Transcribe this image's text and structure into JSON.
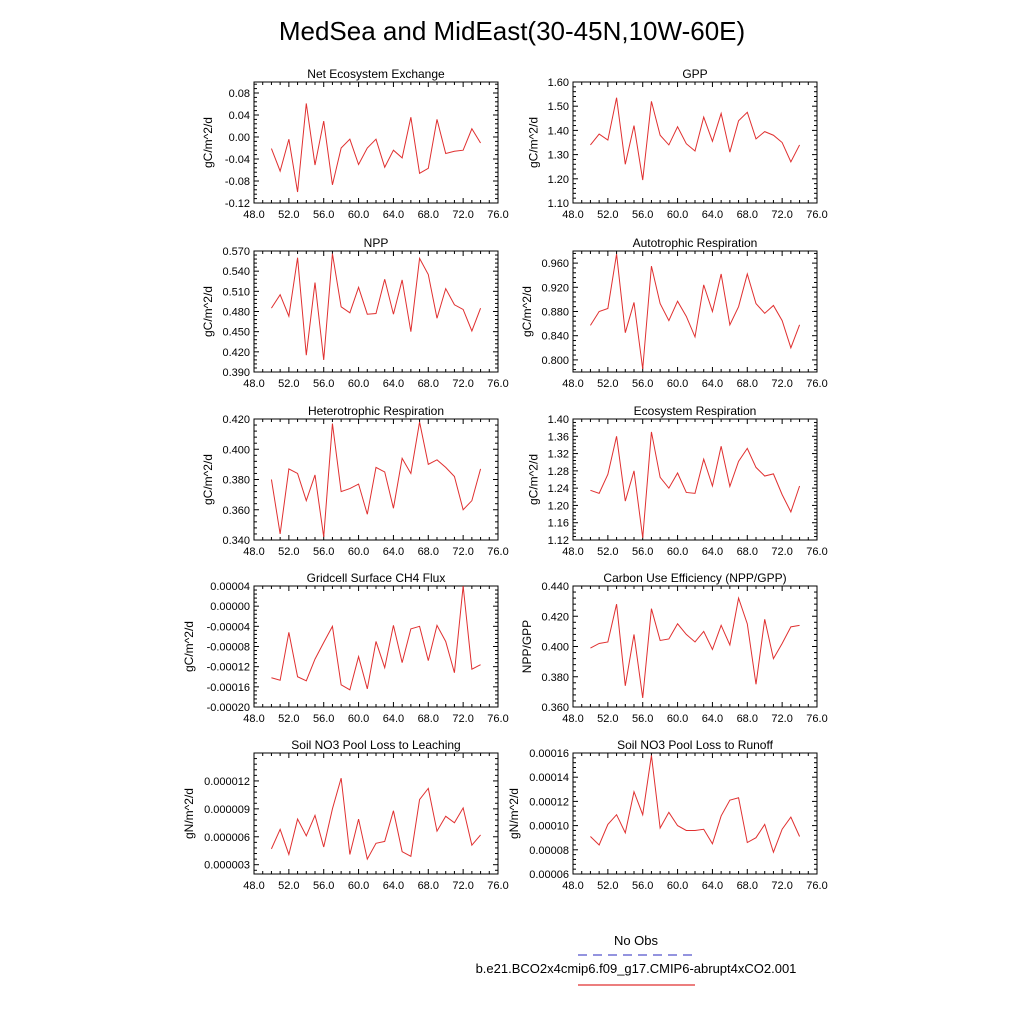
{
  "figure": {
    "title": "MedSea and MidEast(30-45N,10W-60E)"
  },
  "legend": {
    "entries": [
      {
        "label": "No Obs",
        "color": "#5555cc",
        "style": "dashed"
      },
      {
        "label": "b.e21.BCO2x4cmip6.f09_g17.CMIP6-abrupt4xCO2.001",
        "color": "#e03030",
        "style": "solid"
      }
    ]
  },
  "chart_data": [
    {
      "type": "line",
      "title": "Net Ecosystem Exchange",
      "ylabel": "gC/m^2/d",
      "xlabel": "",
      "xlim": [
        48,
        76
      ],
      "xticks": [
        48,
        52,
        56,
        60,
        64,
        68,
        72,
        76
      ],
      "xtick_labels": [
        "48.0",
        "52.0",
        "56.0",
        "60.0",
        "64.0",
        "68.0",
        "72.0",
        "76.0"
      ],
      "ylim": [
        -0.12,
        0.1
      ],
      "yticks": [
        -0.12,
        -0.08,
        -0.04,
        0.0,
        0.04,
        0.08
      ],
      "ytick_labels": [
        "-0.12",
        "-0.08",
        "-0.04",
        "0.00",
        "0.04",
        "0.08"
      ],
      "series": [
        {
          "name": "b.e21.BCO2x4cmip6.f09_g17.CMIP6-abrupt4xCO2.001",
          "color": "#e03030",
          "x": [
            50,
            51,
            52,
            53,
            54,
            55,
            56,
            57,
            58,
            59,
            60,
            61,
            62,
            63,
            64,
            65,
            66,
            67,
            68,
            69,
            70,
            71,
            72,
            73,
            74
          ],
          "values": [
            -0.021,
            -0.062,
            -0.004,
            -0.1,
            0.061,
            -0.051,
            0.029,
            -0.087,
            -0.02,
            -0.004,
            -0.05,
            -0.02,
            -0.004,
            -0.055,
            -0.024,
            -0.038,
            0.036,
            -0.066,
            -0.057,
            0.032,
            -0.03,
            -0.026,
            -0.024,
            0.015,
            -0.011
          ]
        }
      ]
    },
    {
      "type": "line",
      "title": "GPP",
      "ylabel": "gC/m^2/d",
      "xlabel": "",
      "xlim": [
        48,
        76
      ],
      "xticks": [
        48,
        52,
        56,
        60,
        64,
        68,
        72,
        76
      ],
      "xtick_labels": [
        "48.0",
        "52.0",
        "56.0",
        "60.0",
        "64.0",
        "68.0",
        "72.0",
        "76.0"
      ],
      "ylim": [
        1.1,
        1.6
      ],
      "yticks": [
        1.1,
        1.2,
        1.3,
        1.4,
        1.5,
        1.6
      ],
      "ytick_labels": [
        "1.10",
        "1.20",
        "1.30",
        "1.40",
        "1.50",
        "1.60"
      ],
      "series": [
        {
          "name": "b.e21.BCO2x4cmip6.f09_g17.CMIP6-abrupt4xCO2.001",
          "color": "#e03030",
          "x": [
            50,
            51,
            52,
            53,
            54,
            55,
            56,
            57,
            58,
            59,
            60,
            61,
            62,
            63,
            64,
            65,
            66,
            67,
            68,
            69,
            70,
            71,
            72,
            73,
            74
          ],
          "values": [
            1.34,
            1.385,
            1.36,
            1.535,
            1.26,
            1.42,
            1.195,
            1.52,
            1.38,
            1.34,
            1.415,
            1.345,
            1.315,
            1.455,
            1.355,
            1.47,
            1.31,
            1.44,
            1.475,
            1.365,
            1.395,
            1.38,
            1.35,
            1.27,
            1.34
          ]
        }
      ]
    },
    {
      "type": "line",
      "title": "NPP",
      "ylabel": "gC/m^2/d",
      "xlabel": "",
      "xlim": [
        48,
        76
      ],
      "xticks": [
        48,
        52,
        56,
        60,
        64,
        68,
        72,
        76
      ],
      "xtick_labels": [
        "48.0",
        "52.0",
        "56.0",
        "60.0",
        "64.0",
        "68.0",
        "72.0",
        "76.0"
      ],
      "ylim": [
        0.39,
        0.57
      ],
      "yticks": [
        0.39,
        0.42,
        0.45,
        0.48,
        0.51,
        0.54,
        0.57
      ],
      "ytick_labels": [
        "0.390",
        "0.420",
        "0.450",
        "0.480",
        "0.510",
        "0.540",
        "0.570"
      ],
      "series": [
        {
          "name": "b.e21.BCO2x4cmip6.f09_g17.CMIP6-abrupt4xCO2.001",
          "color": "#e03030",
          "x": [
            50,
            51,
            52,
            53,
            54,
            55,
            56,
            57,
            58,
            59,
            60,
            61,
            62,
            63,
            64,
            65,
            66,
            67,
            68,
            69,
            70,
            71,
            72,
            73,
            74
          ],
          "values": [
            0.485,
            0.505,
            0.473,
            0.56,
            0.415,
            0.523,
            0.408,
            0.566,
            0.487,
            0.478,
            0.516,
            0.476,
            0.477,
            0.528,
            0.476,
            0.527,
            0.45,
            0.559,
            0.535,
            0.47,
            0.514,
            0.49,
            0.483,
            0.451,
            0.485
          ]
        }
      ]
    },
    {
      "type": "line",
      "title": "Autotrophic Respiration",
      "ylabel": "gC/m^2/d",
      "xlabel": "",
      "xlim": [
        48,
        76
      ],
      "xticks": [
        48,
        52,
        56,
        60,
        64,
        68,
        72,
        76
      ],
      "xtick_labels": [
        "48.0",
        "52.0",
        "56.0",
        "60.0",
        "64.0",
        "68.0",
        "72.0",
        "76.0"
      ],
      "ylim": [
        0.78,
        0.98
      ],
      "yticks": [
        0.8,
        0.84,
        0.88,
        0.92,
        0.96
      ],
      "ytick_labels": [
        "0.800",
        "0.840",
        "0.880",
        "0.920",
        "0.960"
      ],
      "series": [
        {
          "name": "b.e21.BCO2x4cmip6.f09_g17.CMIP6-abrupt4xCO2.001",
          "color": "#e03030",
          "x": [
            50,
            51,
            52,
            53,
            54,
            55,
            56,
            57,
            58,
            59,
            60,
            61,
            62,
            63,
            64,
            65,
            66,
            67,
            68,
            69,
            70,
            71,
            72,
            73,
            74
          ],
          "values": [
            0.857,
            0.88,
            0.885,
            0.975,
            0.845,
            0.895,
            0.785,
            0.955,
            0.893,
            0.865,
            0.897,
            0.872,
            0.838,
            0.924,
            0.88,
            0.942,
            0.858,
            0.888,
            0.942,
            0.893,
            0.877,
            0.89,
            0.865,
            0.82,
            0.858
          ]
        }
      ]
    },
    {
      "type": "line",
      "title": "Heterotrophic Respiration",
      "ylabel": "gC/m^2/d",
      "xlabel": "",
      "xlim": [
        48,
        76
      ],
      "xticks": [
        48,
        52,
        56,
        60,
        64,
        68,
        72,
        76
      ],
      "xtick_labels": [
        "48.0",
        "52.0",
        "56.0",
        "60.0",
        "64.0",
        "68.0",
        "72.0",
        "76.0"
      ],
      "ylim": [
        0.34,
        0.42
      ],
      "yticks": [
        0.34,
        0.36,
        0.38,
        0.4,
        0.42
      ],
      "ytick_labels": [
        "0.340",
        "0.360",
        "0.380",
        "0.400",
        "0.420"
      ],
      "series": [
        {
          "name": "b.e21.BCO2x4cmip6.f09_g17.CMIP6-abrupt4xCO2.001",
          "color": "#e03030",
          "x": [
            50,
            51,
            52,
            53,
            54,
            55,
            56,
            57,
            58,
            59,
            60,
            61,
            62,
            63,
            64,
            65,
            66,
            67,
            68,
            69,
            70,
            71,
            72,
            73,
            74
          ],
          "values": [
            0.38,
            0.344,
            0.387,
            0.384,
            0.366,
            0.383,
            0.342,
            0.417,
            0.372,
            0.374,
            0.377,
            0.357,
            0.388,
            0.385,
            0.361,
            0.394,
            0.384,
            0.418,
            0.39,
            0.393,
            0.388,
            0.382,
            0.36,
            0.366,
            0.387
          ]
        }
      ]
    },
    {
      "type": "line",
      "title": "Ecosystem Respiration",
      "ylabel": "gC/m^2/d",
      "xlabel": "",
      "xlim": [
        48,
        76
      ],
      "xticks": [
        48,
        52,
        56,
        60,
        64,
        68,
        72,
        76
      ],
      "xtick_labels": [
        "48.0",
        "52.0",
        "56.0",
        "60.0",
        "64.0",
        "68.0",
        "72.0",
        "76.0"
      ],
      "ylim": [
        1.12,
        1.4
      ],
      "yticks": [
        1.12,
        1.16,
        1.2,
        1.24,
        1.28,
        1.32,
        1.36,
        1.4
      ],
      "ytick_labels": [
        "1.12",
        "1.16",
        "1.20",
        "1.24",
        "1.28",
        "1.32",
        "1.36",
        "1.40"
      ],
      "series": [
        {
          "name": "b.e21.BCO2x4cmip6.f09_g17.CMIP6-abrupt4xCO2.001",
          "color": "#e03030",
          "x": [
            50,
            51,
            52,
            53,
            54,
            55,
            56,
            57,
            58,
            59,
            60,
            61,
            62,
            63,
            64,
            65,
            66,
            67,
            68,
            69,
            70,
            71,
            72,
            73,
            74
          ],
          "values": [
            1.235,
            1.228,
            1.272,
            1.36,
            1.21,
            1.28,
            1.125,
            1.37,
            1.265,
            1.24,
            1.275,
            1.23,
            1.228,
            1.307,
            1.245,
            1.337,
            1.244,
            1.302,
            1.332,
            1.288,
            1.268,
            1.273,
            1.225,
            1.185,
            1.245
          ]
        }
      ]
    },
    {
      "type": "line",
      "title": "Gridcell Surface CH4 Flux",
      "ylabel": "gC/m^2/d",
      "xlabel": "",
      "xlim": [
        48,
        76
      ],
      "xticks": [
        48,
        52,
        56,
        60,
        64,
        68,
        72,
        76
      ],
      "xtick_labels": [
        "48.0",
        "52.0",
        "56.0",
        "60.0",
        "64.0",
        "68.0",
        "72.0",
        "76.0"
      ],
      "ylim": [
        -0.0002,
        4e-05
      ],
      "yticks": [
        -0.0002,
        -0.00016,
        -0.00012,
        -8e-05,
        -4e-05,
        0.0,
        4e-05
      ],
      "ytick_labels": [
        "-0.00020",
        "-0.00016",
        "-0.00012",
        "-0.00008",
        "-0.00004",
        "0.00000",
        "0.00004"
      ],
      "series": [
        {
          "name": "b.e21.BCO2x4cmip6.f09_g17.CMIP6-abrupt4xCO2.001",
          "color": "#e03030",
          "x": [
            50,
            51,
            52,
            53,
            54,
            55,
            56,
            57,
            58,
            59,
            60,
            61,
            62,
            63,
            64,
            65,
            66,
            67,
            68,
            69,
            70,
            71,
            72,
            73,
            74
          ],
          "values": [
            -0.000142,
            -0.000147,
            -5.2e-05,
            -0.00014,
            -0.000148,
            -0.000105,
            -7.2e-05,
            -4e-05,
            -0.000156,
            -0.000166,
            -0.0001,
            -0.000164,
            -7e-05,
            -0.000122,
            -3.8e-05,
            -0.000112,
            -4.5e-05,
            -4e-05,
            -0.000108,
            -3.8e-05,
            -7e-05,
            -0.000132,
            4e-05,
            -0.000125,
            -0.000116
          ]
        }
      ]
    },
    {
      "type": "line",
      "title": "Carbon Use Efficiency (NPP/GPP)",
      "ylabel": "NPP/GPP",
      "xlabel": "",
      "xlim": [
        48,
        76
      ],
      "xticks": [
        48,
        52,
        56,
        60,
        64,
        68,
        72,
        76
      ],
      "xtick_labels": [
        "48.0",
        "52.0",
        "56.0",
        "60.0",
        "64.0",
        "68.0",
        "72.0",
        "76.0"
      ],
      "ylim": [
        0.36,
        0.44
      ],
      "yticks": [
        0.36,
        0.38,
        0.4,
        0.42,
        0.44
      ],
      "ytick_labels": [
        "0.360",
        "0.380",
        "0.400",
        "0.420",
        "0.440"
      ],
      "series": [
        {
          "name": "b.e21.BCO2x4cmip6.f09_g17.CMIP6-abrupt4xCO2.001",
          "color": "#e03030",
          "x": [
            50,
            51,
            52,
            53,
            54,
            55,
            56,
            57,
            58,
            59,
            60,
            61,
            62,
            63,
            64,
            65,
            66,
            67,
            68,
            69,
            70,
            71,
            72,
            73,
            74
          ],
          "values": [
            0.399,
            0.402,
            0.403,
            0.428,
            0.374,
            0.408,
            0.366,
            0.425,
            0.404,
            0.405,
            0.415,
            0.408,
            0.403,
            0.41,
            0.398,
            0.414,
            0.401,
            0.432,
            0.415,
            0.375,
            0.418,
            0.392,
            0.402,
            0.413,
            0.414
          ]
        }
      ]
    },
    {
      "type": "line",
      "title": "Soil NO3 Pool Loss to Leaching",
      "ylabel": "gN/m^2/d",
      "xlabel": "",
      "xlim": [
        48,
        76
      ],
      "xticks": [
        48,
        52,
        56,
        60,
        64,
        68,
        72,
        76
      ],
      "xtick_labels": [
        "48.0",
        "52.0",
        "56.0",
        "60.0",
        "64.0",
        "68.0",
        "72.0",
        "76.0"
      ],
      "ylim": [
        2e-06,
        1.5e-05
      ],
      "yticks": [
        3e-06,
        6e-06,
        9e-06,
        1.2e-05
      ],
      "ytick_labels": [
        "0.000003",
        "0.000006",
        "0.000009",
        "0.000012"
      ],
      "series": [
        {
          "name": "b.e21.BCO2x4cmip6.f09_g17.CMIP6-abrupt4xCO2.001",
          "color": "#e03030",
          "x": [
            50,
            51,
            52,
            53,
            54,
            55,
            56,
            57,
            58,
            59,
            60,
            61,
            62,
            63,
            64,
            65,
            66,
            67,
            68,
            69,
            70,
            71,
            72,
            73,
            74
          ],
          "values": [
            4.7e-06,
            6.8e-06,
            4.1e-06,
            7.9e-06,
            6.1e-06,
            8.3e-06,
            4.9e-06,
            9e-06,
            1.23e-05,
            4.1e-06,
            7.9e-06,
            3.6e-06,
            5.3e-06,
            5.5e-06,
            8.8e-06,
            4.4e-06,
            3.9e-06,
            1e-05,
            1.12e-05,
            6.6e-06,
            8.2e-06,
            7.5e-06,
            9.1e-06,
            5.1e-06,
            6.2e-06
          ]
        }
      ]
    },
    {
      "type": "line",
      "title": "Soil NO3 Pool Loss to Runoff",
      "ylabel": "gN/m^2/d",
      "xlabel": "",
      "xlim": [
        48,
        76
      ],
      "xticks": [
        48,
        52,
        56,
        60,
        64,
        68,
        72,
        76
      ],
      "xtick_labels": [
        "48.0",
        "52.0",
        "56.0",
        "60.0",
        "64.0",
        "68.0",
        "72.0",
        "76.0"
      ],
      "ylim": [
        6e-05,
        0.00016
      ],
      "yticks": [
        6e-05,
        8e-05,
        0.0001,
        0.00012,
        0.00014,
        0.00016
      ],
      "ytick_labels": [
        "0.00006",
        "0.00008",
        "0.00010",
        "0.00012",
        "0.00014",
        "0.00016"
      ],
      "series": [
        {
          "name": "b.e21.BCO2x4cmip6.f09_g17.CMIP6-abrupt4xCO2.001",
          "color": "#e03030",
          "x": [
            50,
            51,
            52,
            53,
            54,
            55,
            56,
            57,
            58,
            59,
            60,
            61,
            62,
            63,
            64,
            65,
            66,
            67,
            68,
            69,
            70,
            71,
            72,
            73,
            74
          ],
          "values": [
            9.1e-05,
            8.4e-05,
            0.000101,
            0.000109,
            9.4e-05,
            0.000128,
            0.000109,
            0.000158,
            9.8e-05,
            0.000111,
            0.0001,
            9.6e-05,
            9.6e-05,
            9.7e-05,
            8.5e-05,
            0.000108,
            0.000121,
            0.000123,
            8.6e-05,
            9e-05,
            0.000101,
            7.8e-05,
            9.7e-05,
            0.000107,
            9.1e-05
          ]
        }
      ]
    }
  ]
}
